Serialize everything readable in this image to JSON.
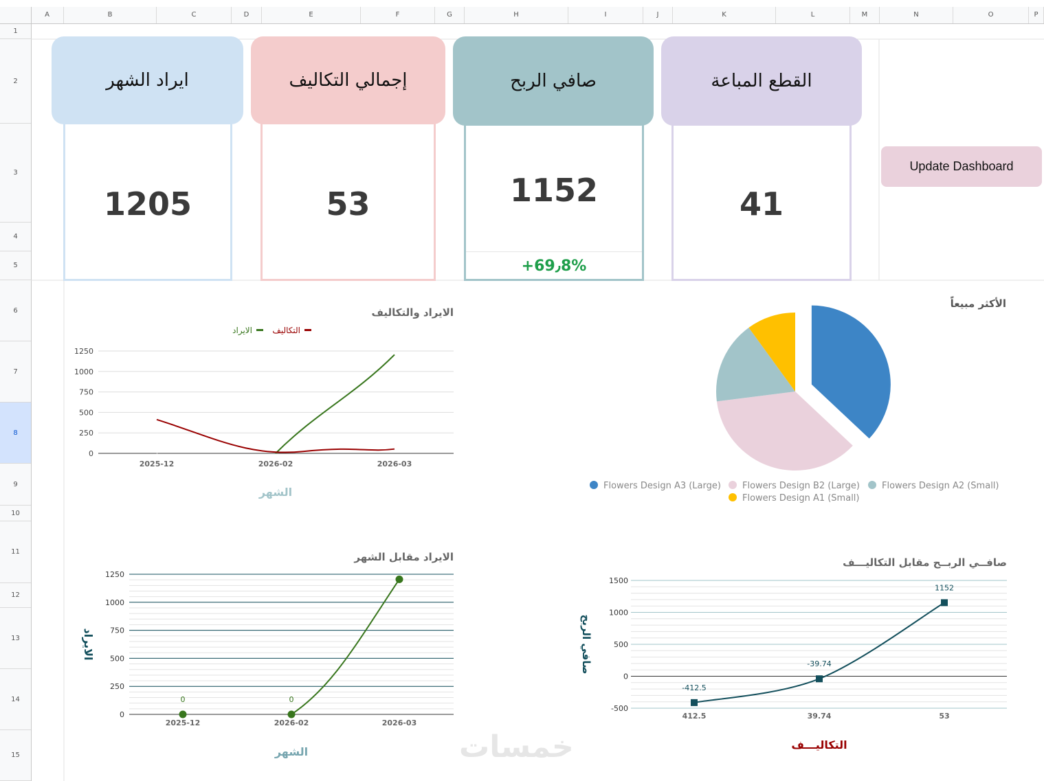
{
  "columns": [
    "A",
    "B",
    "C",
    "D",
    "E",
    "F",
    "G",
    "H",
    "I",
    "J",
    "K",
    "L",
    "M",
    "N",
    "O",
    "P"
  ],
  "rows": [
    "1",
    "2",
    "3",
    "4",
    "5",
    "6",
    "7",
    "8",
    "9",
    "10",
    "11",
    "12",
    "13",
    "14",
    "15"
  ],
  "cards": [
    {
      "title": "ايراد الشهر",
      "value": "1205",
      "head_color": "#cfe2f3",
      "border_color": "#cfe2f3"
    },
    {
      "title": "إجمالي التكاليف",
      "value": "53",
      "head_color": "#f4cccc",
      "border_color": "#f4cccc"
    },
    {
      "title": "صافي الربح",
      "value": "1152",
      "sub": "+69٫8%",
      "head_color": "#a2c4c9",
      "border_color": "#a2c4c9",
      "sub_color": "#1e9e4a"
    },
    {
      "title": "القطع المباعة",
      "value": "41",
      "head_color": "#d9d2e9",
      "border_color": "#d9d2e9"
    }
  ],
  "update_button": "Update Dashboard",
  "watermark": "خمسات",
  "chart_data": [
    {
      "type": "line",
      "title": "الايراد والتكاليف",
      "xlabel": "الشهر",
      "ylabel": "",
      "categories": [
        "2025-12",
        "2026-02",
        "2026-03"
      ],
      "ylim": [
        0,
        1250
      ],
      "yticks": [
        0,
        250,
        500,
        750,
        1000,
        1250
      ],
      "legend": "top",
      "series": [
        {
          "name": "الايراد",
          "color": "#38761d",
          "values": [
            0,
            0,
            1205
          ]
        },
        {
          "name": "التكاليف",
          "color": "#990000",
          "values": [
            412.5,
            39.74,
            53
          ]
        }
      ]
    },
    {
      "type": "pie",
      "title": "الأكثر مبيعاً",
      "legend": "bottom",
      "slices": [
        {
          "label": "Flowers Design A3 (Large)",
          "value": 37,
          "color": "#3d85c6"
        },
        {
          "label": "Flowers Design B2 (Large)",
          "value": 36,
          "color": "#ead1dc"
        },
        {
          "label": "Flowers Design A2 (Small)",
          "value": 17,
          "color": "#a2c4c9"
        },
        {
          "label": "Flowers Design A1 (Small)",
          "value": 10,
          "color": "#ffc000"
        }
      ]
    },
    {
      "type": "line",
      "title": "الايراد مقابل الشهر",
      "xlabel": "الشهر",
      "ylabel": "الايراد",
      "categories": [
        "2025-12",
        "2026-02",
        "2026-03"
      ],
      "ylim": [
        0,
        1250
      ],
      "yticks": [
        0,
        250,
        500,
        750,
        1000,
        1250
      ],
      "series": [
        {
          "name": "",
          "color": "#38761d",
          "values": [
            0,
            0,
            1205
          ],
          "labels": [
            "0",
            "0",
            ""
          ]
        }
      ]
    },
    {
      "type": "line",
      "title": "صافــي الربــح مقابل التكاليـــف",
      "xlabel": "التكاليـــف",
      "ylabel": "صافي الربح",
      "categories": [
        "412.5",
        "39.74",
        "53"
      ],
      "ylim": [
        -500,
        1500
      ],
      "yticks": [
        -500,
        0,
        500,
        1000,
        1500
      ],
      "series": [
        {
          "name": "",
          "color": "#134f5c",
          "values": [
            -412.5,
            -39.74,
            1152
          ],
          "labels": [
            "-412.5",
            "-39.74",
            "1152"
          ]
        }
      ]
    }
  ]
}
